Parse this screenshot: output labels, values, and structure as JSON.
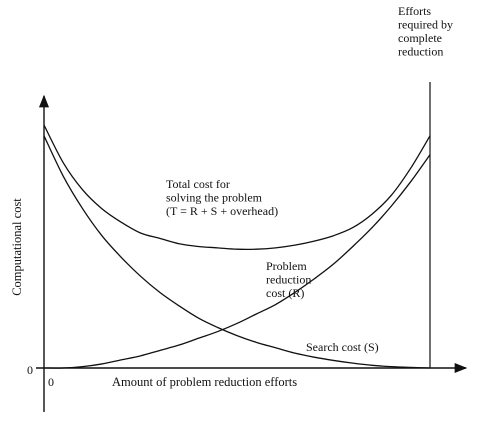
{
  "chart_data": {
    "type": "line",
    "title": "",
    "xlabel": "Amount of problem reduction efforts",
    "ylabel": "Computational cost",
    "x_origin_label": "0",
    "y_origin_label": "0",
    "xlim": [
      0,
      1
    ],
    "ylim": [
      0,
      1
    ],
    "grid": false,
    "legend": "none",
    "series": [
      {
        "key": "total",
        "label_lines": [
          "Total cost for",
          "solving the problem",
          "(T = R + S + overhead)"
        ],
        "x": [
          0.0,
          0.05,
          0.1,
          0.15,
          0.2,
          0.25,
          0.3,
          0.35,
          0.4,
          0.45,
          0.5,
          0.55,
          0.6,
          0.65,
          0.7,
          0.75,
          0.8,
          0.85,
          0.9,
          0.95,
          1.0
        ],
        "values": [
          0.9,
          0.76,
          0.66,
          0.59,
          0.54,
          0.5,
          0.48,
          0.46,
          0.45,
          0.445,
          0.44,
          0.44,
          0.445,
          0.455,
          0.47,
          0.49,
          0.52,
          0.57,
          0.64,
          0.74,
          0.86
        ]
      },
      {
        "key": "reduction",
        "label_lines": [
          "Problem",
          "reduction",
          "cost (R)"
        ],
        "x": [
          0.0,
          0.05,
          0.1,
          0.15,
          0.2,
          0.25,
          0.3,
          0.35,
          0.4,
          0.45,
          0.5,
          0.55,
          0.6,
          0.65,
          0.7,
          0.75,
          0.8,
          0.85,
          0.9,
          0.95,
          1.0
        ],
        "values": [
          0.0,
          0.0,
          0.005,
          0.015,
          0.03,
          0.045,
          0.065,
          0.085,
          0.11,
          0.135,
          0.165,
          0.2,
          0.235,
          0.28,
          0.33,
          0.385,
          0.45,
          0.52,
          0.6,
          0.69,
          0.79
        ]
      },
      {
        "key": "search",
        "label_lines": [
          "Search cost (S)"
        ],
        "x": [
          0.0,
          0.05,
          0.1,
          0.15,
          0.2,
          0.25,
          0.3,
          0.35,
          0.4,
          0.45,
          0.5,
          0.55,
          0.6,
          0.65,
          0.7,
          0.75,
          0.8,
          0.85,
          0.9,
          0.95,
          1.0
        ],
        "values": [
          0.86,
          0.71,
          0.59,
          0.49,
          0.41,
          0.34,
          0.28,
          0.23,
          0.185,
          0.15,
          0.12,
          0.095,
          0.075,
          0.055,
          0.04,
          0.028,
          0.018,
          0.01,
          0.005,
          0.002,
          0.0
        ]
      }
    ],
    "annotations": {
      "effort_limit": {
        "x": 1.0,
        "label_lines": [
          "Efforts",
          "required by",
          "complete",
          "reduction"
        ]
      }
    }
  }
}
